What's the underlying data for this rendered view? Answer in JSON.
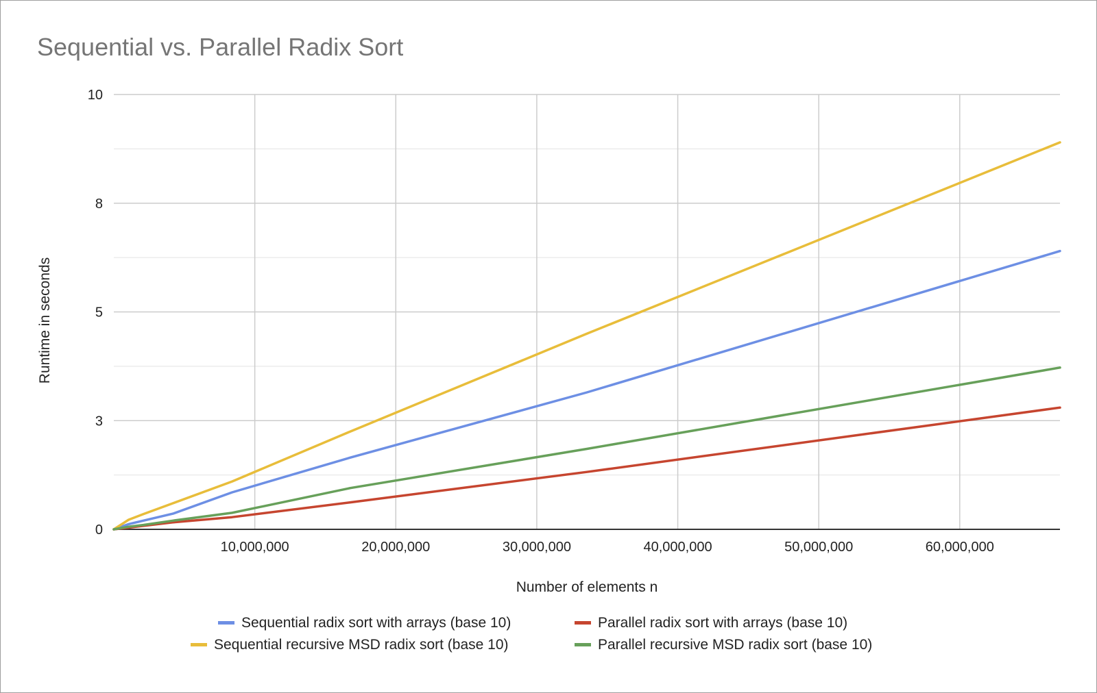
{
  "chart_data": {
    "type": "line",
    "title": "Sequential vs. Parallel Radix Sort",
    "xlabel": "Number of elements n",
    "ylabel": "Runtime in seconds",
    "xlim": [
      0,
      67108864
    ],
    "ylim": [
      0,
      10
    ],
    "x_ticks": [
      {
        "value": 10000000,
        "label": "10,000,000"
      },
      {
        "value": 20000000,
        "label": "20,000,000"
      },
      {
        "value": 30000000,
        "label": "30,000,000"
      },
      {
        "value": 40000000,
        "label": "40,000,000"
      },
      {
        "value": 50000000,
        "label": "50,000,000"
      },
      {
        "value": 60000000,
        "label": "60,000,000"
      }
    ],
    "y_ticks": [
      {
        "value": 0,
        "label": "0"
      },
      {
        "value": 2.5,
        "label": "3"
      },
      {
        "value": 5,
        "label": "5"
      },
      {
        "value": 7.5,
        "label": "8"
      },
      {
        "value": 10,
        "label": "10"
      }
    ],
    "y_minor_gridlines": [
      1.25,
      3.75,
      6.25,
      8.75
    ],
    "grid": true,
    "legend_position": "bottom",
    "series": [
      {
        "name": "Sequential radix sort with arrays (base 10)",
        "color": "#6d8fe4",
        "x": [
          0,
          1048576,
          2097152,
          4194304,
          8388608,
          16777216,
          33554432,
          67108864
        ],
        "y": [
          0,
          0.12,
          0.2,
          0.36,
          0.85,
          1.65,
          3.15,
          6.4
        ]
      },
      {
        "name": "Parallel radix sort with arrays (base 10)",
        "color": "#c6452f",
        "x": [
          0,
          1048576,
          2097152,
          4194304,
          8388608,
          16777216,
          33554432,
          67108864
        ],
        "y": [
          0,
          0.04,
          0.08,
          0.16,
          0.28,
          0.62,
          1.32,
          2.8
        ]
      },
      {
        "name": "Sequential recursive MSD radix sort (base 10)",
        "color": "#e8bd3a",
        "x": [
          0,
          1048576,
          2097152,
          4194304,
          8388608,
          16777216,
          33554432,
          67108864
        ],
        "y": [
          0,
          0.22,
          0.35,
          0.6,
          1.1,
          2.25,
          4.5,
          8.9
        ]
      },
      {
        "name": "Parallel recursive MSD radix sort (base 10)",
        "color": "#67a05a",
        "x": [
          0,
          1048576,
          2097152,
          4194304,
          8388608,
          16777216,
          33554432,
          67108864
        ],
        "y": [
          0,
          0.06,
          0.1,
          0.2,
          0.38,
          0.95,
          1.85,
          3.72
        ]
      }
    ]
  },
  "legend": {
    "row1": [
      {
        "label": "Sequential radix sort with arrays (base 10)",
        "color": "#6d8fe4"
      },
      {
        "label": "Parallel radix sort with arrays (base 10)",
        "color": "#c6452f"
      }
    ],
    "row2": [
      {
        "label": "Sequential recursive MSD radix sort (base 10)",
        "color": "#e8bd3a"
      },
      {
        "label": "Parallel recursive MSD radix sort (base 10)",
        "color": "#67a05a"
      }
    ]
  }
}
